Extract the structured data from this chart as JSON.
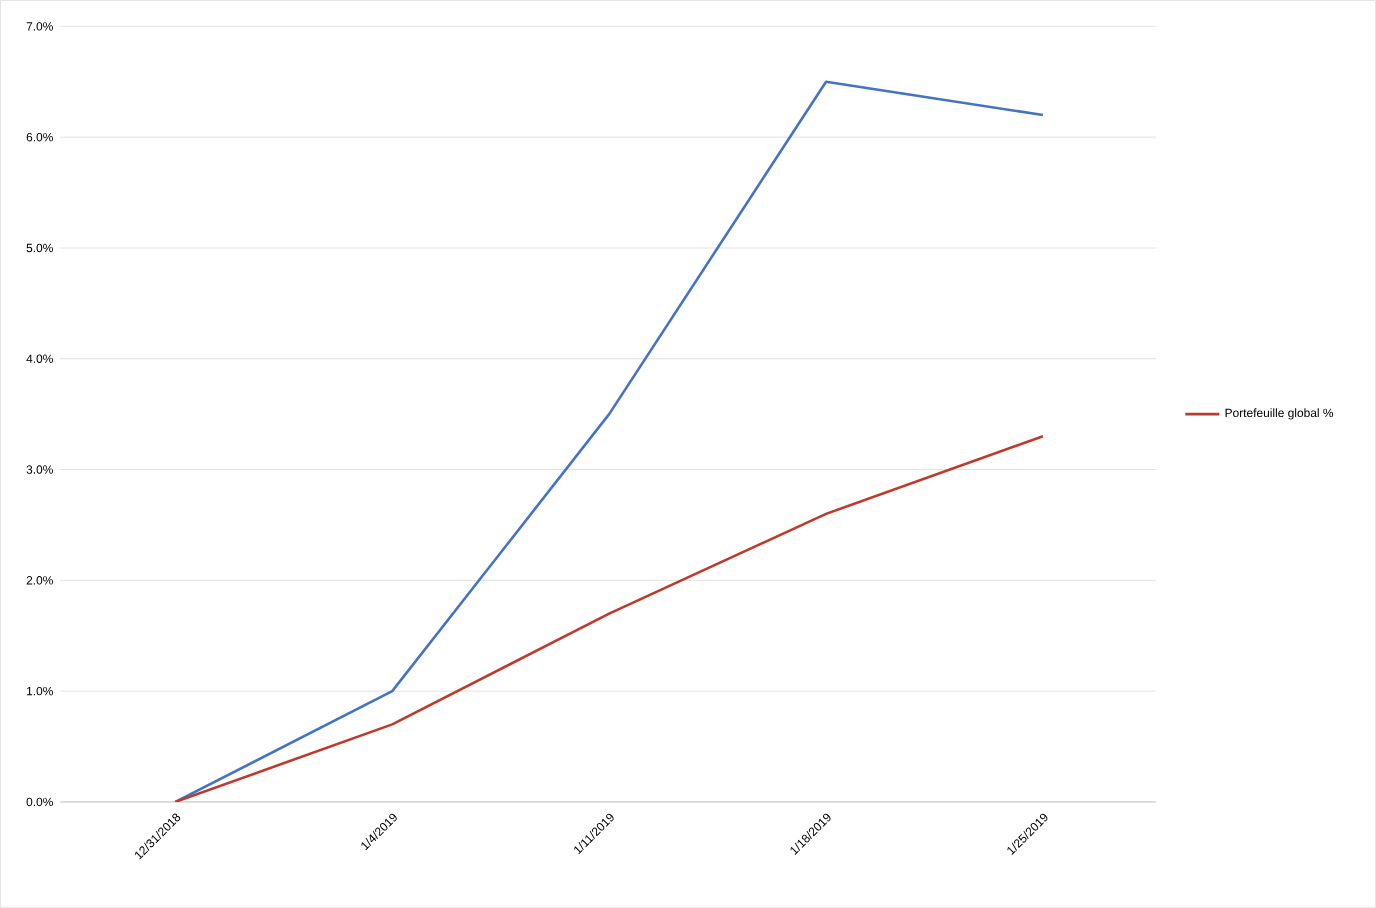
{
  "chart_data": {
    "type": "line",
    "categories": [
      "12/31/2018",
      "1/4/2019",
      "1/11/2019",
      "1/18/2019",
      "1/25/2019"
    ],
    "series": [
      {
        "color": "#4472c4",
        "values": [
          0,
          1.0,
          3.5,
          6.5,
          6.2
        ]
      },
      {
        "name": "Portefeuille global %",
        "color": "#c0392b",
        "values": [
          0,
          0.7,
          1.7,
          2.6,
          3.3
        ]
      }
    ],
    "ylim": [
      0,
      7
    ],
    "yticks": [
      {
        "value": 0,
        "label": "0.0%"
      },
      {
        "value": 1,
        "label": "1.0%"
      },
      {
        "value": 2,
        "label": "2.0%"
      },
      {
        "value": 3,
        "label": "3.0%"
      },
      {
        "value": 4,
        "label": "4.0%"
      },
      {
        "value": 5,
        "label": "5.0%"
      },
      {
        "value": 6,
        "label": "6.0%"
      },
      {
        "value": 7,
        "label": "7.0%"
      }
    ],
    "grid": "y",
    "legend": "right",
    "marker": "none",
    "line_style": "solid"
  }
}
